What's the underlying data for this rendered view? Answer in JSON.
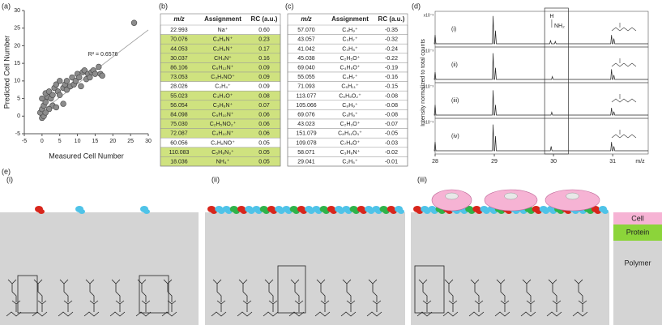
{
  "figure_labels": {
    "a": "(a)",
    "b": "(b)",
    "c": "(c)",
    "d": "(d)",
    "e": "(e)"
  },
  "chart_data": {
    "type": "scatter",
    "x_label": "Measured Cell Number",
    "y_label": "Predicted Cell Number",
    "annotation": "R² = 0.6576",
    "x": [
      0,
      0.5,
      -0.5,
      0,
      0.5,
      1,
      0,
      1.5,
      1,
      2,
      2.5,
      3,
      3,
      3.5,
      4,
      4.5,
      5,
      5,
      6,
      6.5,
      7,
      7,
      8,
      8.5,
      9,
      9.5,
      10,
      10.5,
      11,
      11.5,
      12,
      12.5,
      13,
      13.5,
      14,
      14.5,
      15,
      16,
      16.5,
      17,
      26,
      2,
      4,
      6,
      1
    ],
    "y": [
      -0.5,
      0,
      1,
      2,
      3,
      4,
      5,
      5.5,
      6.5,
      7,
      5,
      3,
      6,
      8,
      9,
      7,
      6,
      10,
      8,
      9,
      7.5,
      10,
      8.5,
      11,
      9,
      10,
      12,
      11,
      8.5,
      12.5,
      13,
      10.5,
      12,
      11,
      12.5,
      13,
      12,
      14,
      12,
      11.5,
      26.5,
      2,
      2.5,
      3.5,
      1
    ],
    "color": "#8c8c8c",
    "xlim": [
      -5,
      30
    ],
    "ylim": [
      -5,
      30
    ],
    "xticks": [
      -5,
      0,
      5,
      10,
      15,
      20,
      25,
      30
    ],
    "yticks": [
      -5,
      0,
      5,
      10,
      15,
      20,
      25,
      30
    ],
    "trendline": {
      "x": [
        0,
        30
      ],
      "y": [
        1.5,
        24.5
      ]
    },
    "grid": false
  },
  "tables": [
    {
      "columns": [
        "m/z",
        "Assignment",
        "RC (a.u.)"
      ],
      "highlight_color": "#cfe27f",
      "rows": [
        {
          "mz": "22.993",
          "assignment": "Na⁺",
          "rc": "0.60",
          "highlighted": false
        },
        {
          "mz": "70.076",
          "assignment": "C₄H₈N⁺",
          "rc": "0.23",
          "highlighted": true
        },
        {
          "mz": "44.053",
          "assignment": "C₂H₆N⁺",
          "rc": "0.17",
          "highlighted": true
        },
        {
          "mz": "30.037",
          "assignment": "CH₄N⁺",
          "rc": "0.16",
          "highlighted": true
        },
        {
          "mz": "86.106",
          "assignment": "C₅H₁₂N⁺",
          "rc": "0.09",
          "highlighted": true
        },
        {
          "mz": "73.053",
          "assignment": "C₃H₇NO⁺",
          "rc": "0.09",
          "highlighted": true
        },
        {
          "mz": "28.026",
          "assignment": "C₂H₄⁺",
          "rc": "0.09",
          "highlighted": false
        },
        {
          "mz": "55.023",
          "assignment": "C₃H₃O⁺",
          "rc": "0.08",
          "highlighted": true
        },
        {
          "mz": "56.054",
          "assignment": "C₃H₆N⁺",
          "rc": "0.07",
          "highlighted": true
        },
        {
          "mz": "84.098",
          "assignment": "C₅H₁₀N⁺",
          "rc": "0.06",
          "highlighted": true
        },
        {
          "mz": "75.030",
          "assignment": "C₂H₅NO₂⁺",
          "rc": "0.06",
          "highlighted": true
        },
        {
          "mz": "72.087",
          "assignment": "C₄H₁₀N⁺",
          "rc": "0.06",
          "highlighted": true
        },
        {
          "mz": "60.056",
          "assignment": "C₂H₆NO⁺",
          "rc": "0.05",
          "highlighted": false
        },
        {
          "mz": "110.083",
          "assignment": "C₅H₈N₃⁺",
          "rc": "0.05",
          "highlighted": true
        },
        {
          "mz": "18.036",
          "assignment": "NH₄⁺",
          "rc": "0.05",
          "highlighted": true
        }
      ]
    },
    {
      "columns": [
        "m/z",
        "Assignment",
        "RC (a.u.)"
      ],
      "highlight_color": "#cfe27f",
      "rows": [
        {
          "mz": "57.070",
          "assignment": "C₄H₉⁺",
          "rc": "-0.35",
          "highlighted": false
        },
        {
          "mz": "43.057",
          "assignment": "C₃H₇⁺",
          "rc": "-0.32",
          "highlighted": false
        },
        {
          "mz": "41.042",
          "assignment": "C₃H₅⁺",
          "rc": "-0.24",
          "highlighted": false
        },
        {
          "mz": "45.038",
          "assignment": "C₂H₅O⁺",
          "rc": "-0.22",
          "highlighted": false
        },
        {
          "mz": "69.040",
          "assignment": "C₄H₅O⁺",
          "rc": "-0.19",
          "highlighted": false
        },
        {
          "mz": "55.055",
          "assignment": "C₄H₇⁺",
          "rc": "-0.16",
          "highlighted": false
        },
        {
          "mz": "71.093",
          "assignment": "C₅H₁₁⁺",
          "rc": "-0.15",
          "highlighted": false
        },
        {
          "mz": "113.077",
          "assignment": "C₆H₉O₂⁺",
          "rc": "-0.08",
          "highlighted": false
        },
        {
          "mz": "105.066",
          "assignment": "C₈H₉⁺",
          "rc": "-0.08",
          "highlighted": false
        },
        {
          "mz": "69.076",
          "assignment": "C₅H₉⁺",
          "rc": "-0.08",
          "highlighted": false
        },
        {
          "mz": "43.023",
          "assignment": "C₂H₃O⁺",
          "rc": "-0.07",
          "highlighted": false
        },
        {
          "mz": "151.079",
          "assignment": "C₈H₁₁O₃⁺",
          "rc": "-0.05",
          "highlighted": false
        },
        {
          "mz": "109.078",
          "assignment": "C₇H₉O⁺",
          "rc": "-0.03",
          "highlighted": false
        },
        {
          "mz": "58.071",
          "assignment": "C₃H₈N⁺",
          "rc": "-0.02",
          "highlighted": false
        },
        {
          "mz": "29.041",
          "assignment": "C₂H₅⁺",
          "rc": "-0.01",
          "highlighted": false
        }
      ]
    }
  ],
  "spectra": {
    "y_label": "Intensity normalized to total counts",
    "x_label": "m/z",
    "xlim": [
      28,
      31.6
    ],
    "xticks": [
      28,
      29,
      30,
      31
    ],
    "samples": [
      {
        "label": "(i)",
        "scale": "x10⁻³"
      },
      {
        "label": "(ii)",
        "scale": "x10⁻³"
      },
      {
        "label": "(iii)",
        "scale": "x10⁻³"
      },
      {
        "label": "(iv)",
        "scale": "x10⁻³"
      }
    ],
    "box_labels": [
      "H",
      "NH₂"
    ]
  },
  "illustration": {
    "panels": [
      "(i)",
      "(ii)",
      "(iii)"
    ],
    "legend": [
      {
        "name": "Cell",
        "color": "#f6b3d4"
      },
      {
        "name": "Protein",
        "color": "#8cd43a"
      },
      {
        "name": "Polymer",
        "color": "#d4d4d4"
      }
    ]
  }
}
